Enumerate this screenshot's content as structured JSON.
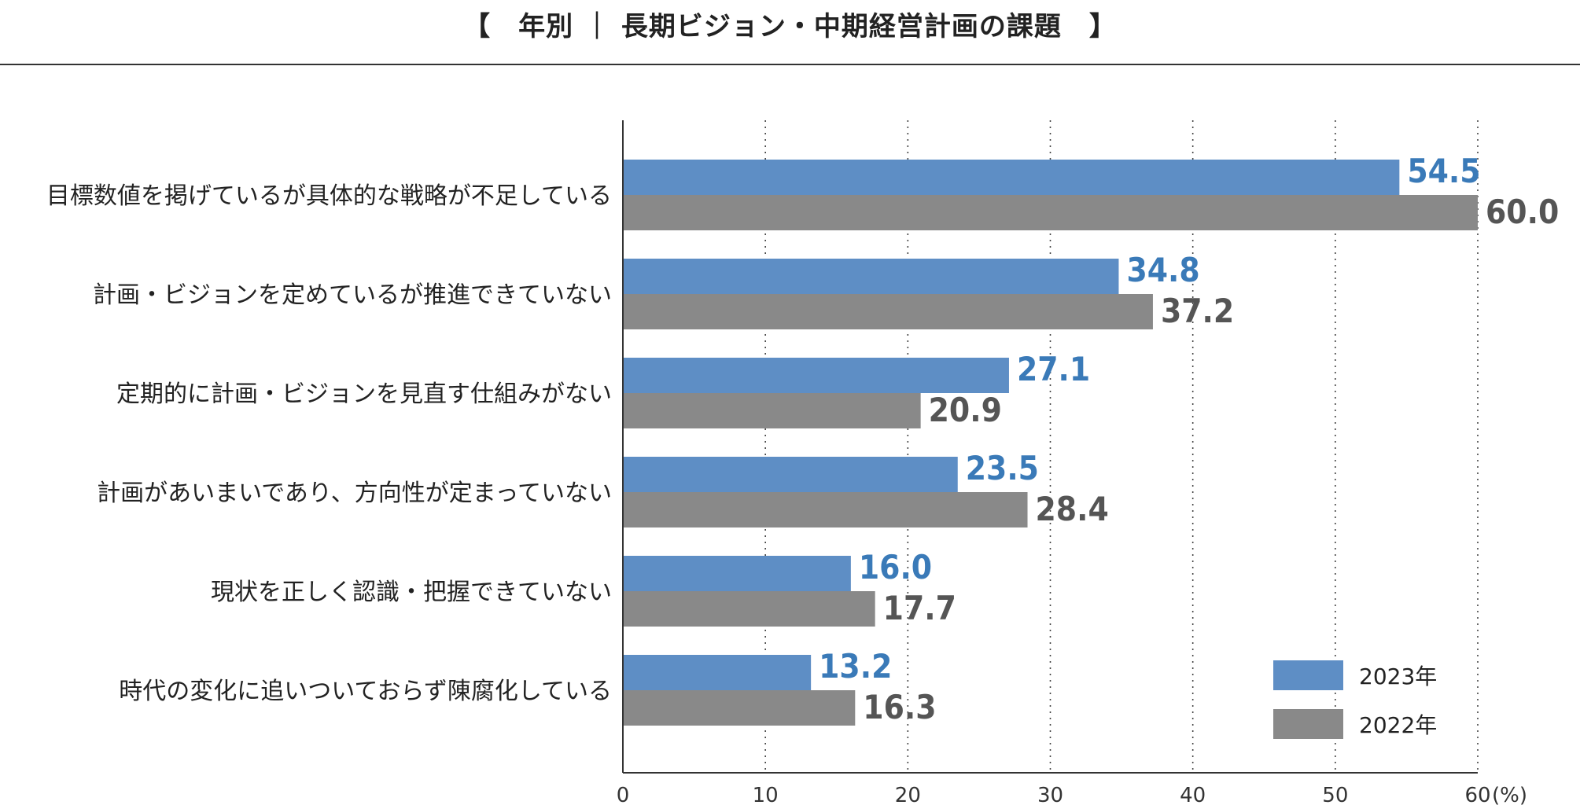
{
  "title": "【　年別 ｜ 長期ビジョン・中期経営計画の課題　】",
  "colors": {
    "series_2023": "#5e8ec5",
    "series_2022": "#898989",
    "label_2023": "#3a7ab8",
    "label_2022": "#555555"
  },
  "chart_data": {
    "type": "bar",
    "orientation": "horizontal",
    "title": "【　年別 ｜ 長期ビジョン・中期経営計画の課題　】",
    "categories": [
      "目標数値を掲げているが具体的な戦略が不足している",
      "計画・ビジョンを定めているが推進できていない",
      "定期的に計画・ビジョンを見直す仕組みがない",
      "計画があいまいであり、方向性が定まっていない",
      "現状を正しく認識・把握できていない",
      "時代の変化に追いついておらず陳腐化している"
    ],
    "series": [
      {
        "name": "2023年",
        "values": [
          54.5,
          34.8,
          27.1,
          23.5,
          16.0,
          13.2
        ],
        "labels": [
          "54.5",
          "34.8",
          "27.1",
          "23.5",
          "16.0",
          "13.2"
        ]
      },
      {
        "name": "2022年",
        "values": [
          60.0,
          37.2,
          20.9,
          28.4,
          17.7,
          16.3
        ],
        "labels": [
          "60.0",
          "37.2",
          "20.9",
          "28.4",
          "17.7",
          "16.3"
        ]
      }
    ],
    "xlim": [
      0,
      60
    ],
    "xticks": [
      "0",
      "10",
      "20",
      "30",
      "40",
      "50",
      "60"
    ],
    "xunit": "(%)",
    "grid": "vertical dotted",
    "legend_position": "bottom-right"
  }
}
